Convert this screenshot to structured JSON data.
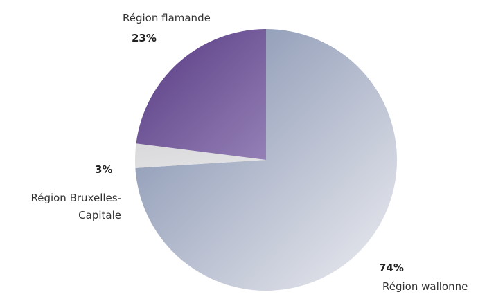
{
  "chart_data": {
    "type": "pie",
    "categories": [
      "Région wallonne",
      "Région Bruxelles-Capitale",
      "Région flamande"
    ],
    "values": [
      74,
      3,
      23
    ],
    "value_labels": [
      "74%",
      "3%",
      "23%"
    ],
    "colors": [
      [
        "#7887a8",
        "#eeeef2"
      ],
      [
        "#d9d9dc",
        "#e4e4e6"
      ],
      [
        "#563a82",
        "#9580b6"
      ]
    ],
    "start_angle": 0,
    "direction": "clockwise"
  }
}
